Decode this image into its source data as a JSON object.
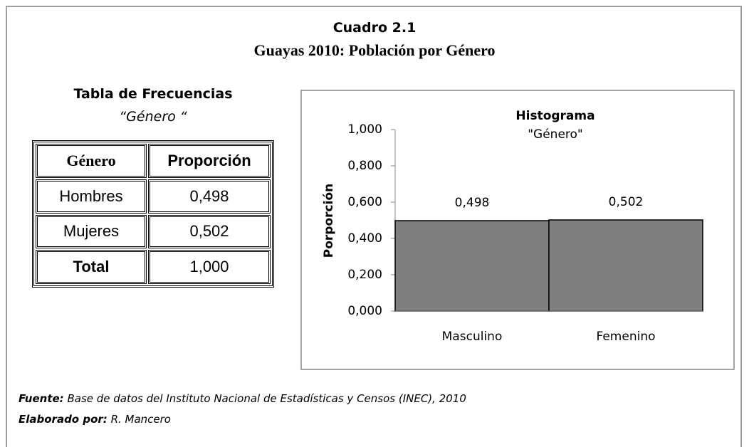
{
  "header": {
    "title": "Cuadro 2.1",
    "subtitle": "Guayas 2010: Población por Género"
  },
  "table": {
    "title": "Tabla de Frecuencias",
    "subtitle": "“Género “",
    "columns": [
      "Género",
      "Proporción"
    ],
    "rows": [
      [
        "Hombres",
        "0,498"
      ],
      [
        "Mujeres",
        "0,502"
      ],
      [
        "Total",
        "1,000"
      ]
    ]
  },
  "chart_data": {
    "type": "bar",
    "title": "Histograma",
    "subtitle": "\"Género\"",
    "y_label": "Porporción",
    "categories": [
      "Masculino",
      "Femenino"
    ],
    "values": [
      0.498,
      0.502
    ],
    "value_labels": [
      "0,498",
      "0,502"
    ],
    "color": "#7f7f7f",
    "ylim": [
      0,
      1
    ],
    "yticks": [
      {
        "value": 0,
        "label": "0,000"
      },
      {
        "value": 0.2,
        "label": "0,200"
      },
      {
        "value": 0.4,
        "label": "0,400"
      },
      {
        "value": 0.6,
        "label": "0,600"
      },
      {
        "value": 0.8,
        "label": "0,800"
      },
      {
        "value": 1,
        "label": "1,000"
      }
    ],
    "grid": false
  },
  "footer": {
    "source_label": "Fuente:",
    "source": "Base de datos del Instituto Nacional de Estadísticas y Censos  (INEC), 2010",
    "author_label": "Elaborado por:",
    "author": "R. Mancero"
  }
}
